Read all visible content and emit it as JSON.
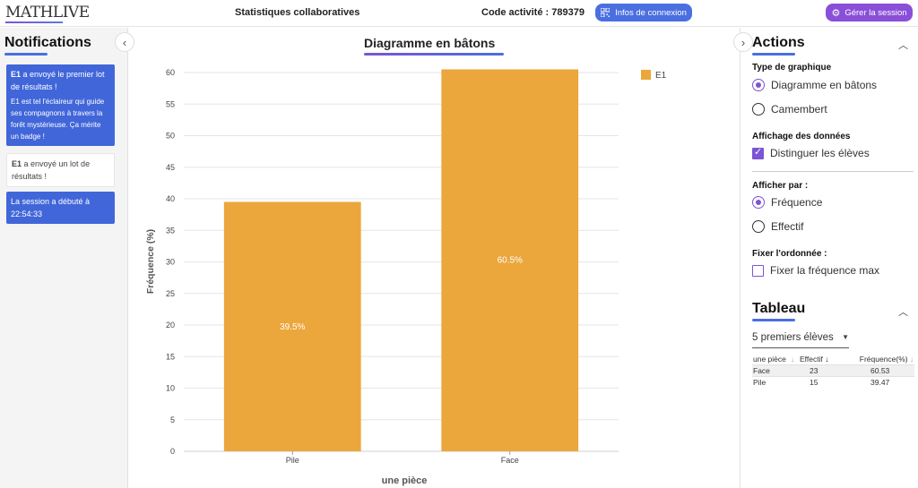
{
  "header": {
    "logo": "MATHLIVE",
    "title": "Statistiques collaboratives",
    "code_label": "Code activité : 789379",
    "connexion_button": "Infos de connexion",
    "session_button": "Gérer la session"
  },
  "notifications": {
    "title": "Notifications",
    "items": [
      {
        "bold": "E1",
        "text": " a envoyé le premier lot de résultats !",
        "sub": "E1 est tel l'éclaireur qui guide ses compagnons à travers la forêt mystérieuse. Ça mérite un badge !"
      },
      {
        "bold": "E1",
        "text": " a envoyé un lot de résultats !"
      },
      {
        "text": "La session a débuté à 22:54:33"
      }
    ]
  },
  "main": {
    "title": "Diagramme en bâtons"
  },
  "chart_data": {
    "type": "bar",
    "title": "Diagramme en bâtons",
    "categories": [
      "Pile",
      "Face"
    ],
    "series": [
      {
        "name": "E1",
        "values": [
          39.5,
          60.5
        ],
        "color": "#eba63c"
      }
    ],
    "data_labels": [
      "39.5%",
      "60.5%"
    ],
    "xlabel": "une pièce",
    "ylabel": "Fréquence (%)",
    "ylim": [
      0,
      60
    ],
    "yticks": [
      0,
      5,
      10,
      15,
      20,
      25,
      30,
      35,
      40,
      45,
      50,
      55,
      60
    ],
    "grid": true,
    "legend": "top-right"
  },
  "actions": {
    "title": "Actions",
    "type_label": "Type de graphique",
    "type_options": [
      "Diagramme en bâtons",
      "Camembert"
    ],
    "type_selected": 0,
    "affichage_label": "Affichage des données",
    "distinguer_label": "Distinguer les élèves",
    "distinguer_checked": true,
    "afficher_par_label": "Afficher par :",
    "afficher_options": [
      "Fréquence",
      "Effectif"
    ],
    "afficher_selected": 0,
    "ordonnee_label": "Fixer l'ordonnée :",
    "fixer_label": "Fixer la fréquence max",
    "fixer_checked": false
  },
  "tableau": {
    "title": "Tableau",
    "select_value": "5 premiers élèves",
    "headers": [
      "une pièce",
      "Effectif",
      "Fréquence(%)"
    ],
    "rows": [
      [
        "Face",
        "23",
        "60.53"
      ],
      [
        "Pile",
        "15",
        "39.47"
      ]
    ]
  },
  "colors": {
    "accent_blue": "#4a6fe0",
    "accent_purple": "#8a4fd8",
    "bar": "#eba63c"
  }
}
